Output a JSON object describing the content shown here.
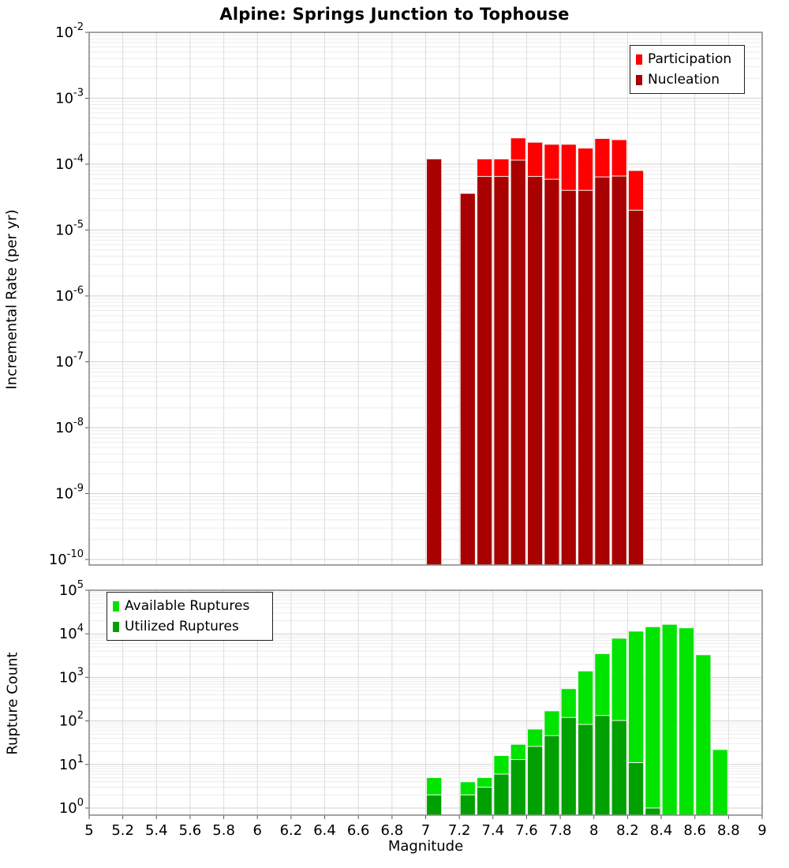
{
  "figure": {
    "title": "Alpine: Springs Junction to Tophouse"
  },
  "chart_data": [
    {
      "type": "bar",
      "title": "Alpine: Springs Junction to Tophouse",
      "ylabel": "Incremental Rate (per yr)",
      "xlabel": "",
      "yscale": "log",
      "ylim_exponents": [
        -10,
        -2
      ],
      "y_tick_exponents": [
        -2,
        -3,
        -4,
        -5,
        -6,
        -7,
        -8,
        -9,
        -10
      ],
      "xlim": [
        5,
        9
      ],
      "x_ticks": [
        "5",
        "5.2",
        "5.4",
        "5.6",
        "5.8",
        "6",
        "6.2",
        "6.4",
        "6.6",
        "6.8",
        "7",
        "7.2",
        "7.4",
        "7.6",
        "7.8",
        "8",
        "8.2",
        "8.4",
        "8.6",
        "8.8",
        "9"
      ],
      "show_x_tick_labels": false,
      "grid": true,
      "legend_position": "top-right",
      "bin_width": 0.1,
      "categories": [
        7.05,
        7.25,
        7.35,
        7.45,
        7.55,
        7.65,
        7.75,
        7.85,
        7.95,
        8.05,
        8.15,
        8.25
      ],
      "series": [
        {
          "name": "Participation",
          "color": "#fe0000",
          "values": [
            0.00012,
            3.6e-05,
            0.00012,
            0.00012,
            0.00025,
            0.000215,
            0.0002,
            0.0002,
            0.000175,
            0.000245,
            0.000235,
            8e-05
          ]
        },
        {
          "name": "Nucleation",
          "color": "#a90000",
          "values": [
            0.00012,
            3.6e-05,
            6.5e-05,
            6.5e-05,
            0.000115,
            6.5e-05,
            5.9e-05,
            4e-05,
            4e-05,
            6.4e-05,
            6.6e-05,
            2e-05
          ]
        }
      ]
    },
    {
      "type": "bar",
      "title": "",
      "ylabel": "Rupture Count",
      "xlabel": "Magnitude",
      "yscale": "log",
      "ylim_exponents": [
        0,
        5
      ],
      "y_tick_exponents": [
        5,
        4,
        3,
        2,
        1,
        0
      ],
      "xlim": [
        5,
        9
      ],
      "x_ticks": [
        "5",
        "5.2",
        "5.4",
        "5.6",
        "5.8",
        "6",
        "6.2",
        "6.4",
        "6.6",
        "6.8",
        "7",
        "7.2",
        "7.4",
        "7.6",
        "7.8",
        "8",
        "8.2",
        "8.4",
        "8.6",
        "8.8",
        "9"
      ],
      "show_x_tick_labels": true,
      "grid": true,
      "legend_position": "top-left",
      "bin_width": 0.1,
      "categories": [
        7.05,
        7.25,
        7.35,
        7.45,
        7.55,
        7.65,
        7.75,
        7.85,
        7.95,
        8.05,
        8.15,
        8.25,
        8.35,
        8.45,
        8.55,
        8.65,
        8.75
      ],
      "series": [
        {
          "name": "Available Ruptures",
          "color": "#00e400",
          "values": [
            5,
            4,
            5,
            16,
            29,
            65,
            170,
            550,
            1400,
            3500,
            7900,
            11500,
            14500,
            16500,
            13700,
            3300,
            22
          ]
        },
        {
          "name": "Utilized Ruptures",
          "color": "#00a000",
          "values": [
            2,
            2,
            3,
            6,
            13,
            26,
            46,
            120,
            83,
            133,
            102,
            11,
            1,
            0,
            0,
            0,
            0
          ]
        }
      ]
    }
  ],
  "colors": {
    "participation": "#fe0000",
    "nucleation": "#a90000",
    "available": "#00e400",
    "utilized": "#00a000",
    "grid_major": "#d2d2d2",
    "grid_minor": "#ececec",
    "grid_vertical": "#dcdcdc",
    "plot_border": "#8c8c8c"
  }
}
